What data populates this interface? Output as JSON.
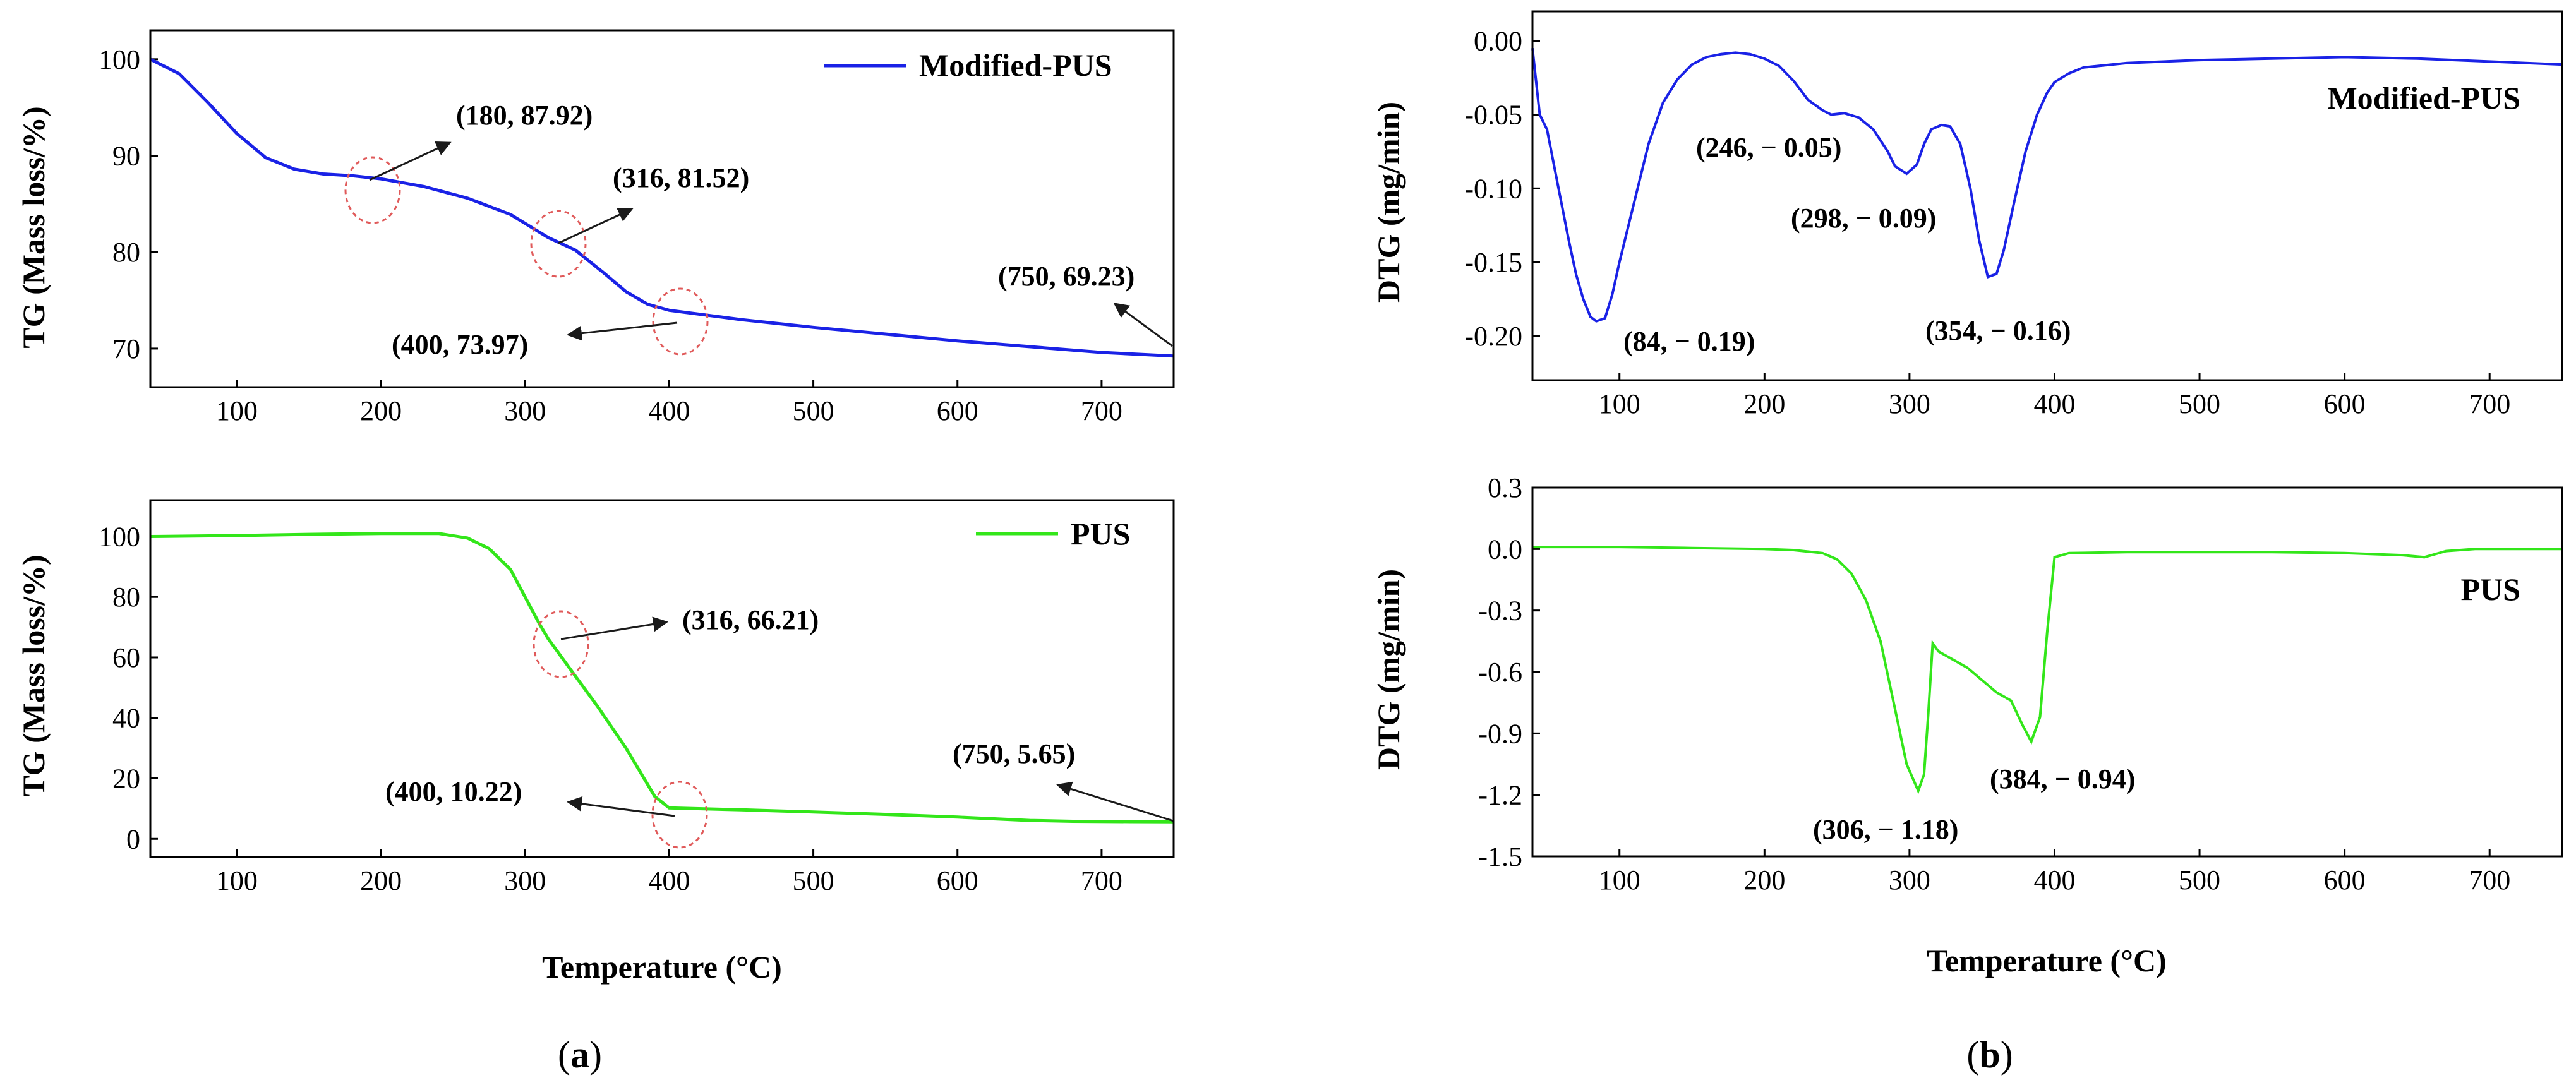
{
  "figure": {
    "panel_labels": [
      {
        "open": "(",
        "letter": "a",
        "close": ")"
      },
      {
        "open": "(",
        "letter": "b",
        "close": ")"
      }
    ],
    "x_axis_title": "Temperature (°C)",
    "x_ticks": [
      100,
      200,
      300,
      400,
      500,
      600,
      700
    ]
  },
  "colors": {
    "modified_pus": "#1a22e6",
    "pus": "#33e61a",
    "circle": "#e05a5a",
    "frame": "#000000"
  },
  "chart_data": [
    {
      "id": "tg_modified",
      "type": "line",
      "xlabel": "Temperature (°C)",
      "ylabel": "TG (Mass loss/%)",
      "xlim": [
        40,
        750
      ],
      "ylim": [
        66,
        103
      ],
      "yticks": [
        70,
        80,
        90,
        100
      ],
      "legend": "Modified-PUS",
      "legend_position": "top-right",
      "series": [
        {
          "name": "Modified-PUS",
          "x": [
            40,
            60,
            80,
            100,
            120,
            140,
            160,
            180,
            200,
            230,
            260,
            290,
            316,
            335,
            355,
            370,
            385,
            400,
            450,
            500,
            550,
            600,
            650,
            700,
            750
          ],
          "y": [
            100,
            98.5,
            95.5,
            92.3,
            89.8,
            88.6,
            88.1,
            87.92,
            87.6,
            86.8,
            85.6,
            83.9,
            81.52,
            80.2,
            77.8,
            75.9,
            74.6,
            73.97,
            73.0,
            72.2,
            71.5,
            70.8,
            70.2,
            69.6,
            69.23
          ]
        }
      ],
      "annotations": [
        {
          "label": "(180, 87.92)",
          "x": 180,
          "y": 87.92
        },
        {
          "label": "(316, 81.52)",
          "x": 316,
          "y": 81.52
        },
        {
          "label": "(400, 73.97)",
          "x": 400,
          "y": 73.97
        },
        {
          "label": "(750, 69.23)",
          "x": 750,
          "y": 69.23
        }
      ]
    },
    {
      "id": "tg_pus",
      "type": "line",
      "xlabel": "Temperature (°C)",
      "ylabel": "TG (Mass loss/%)",
      "xlim": [
        40,
        750
      ],
      "ylim": [
        -6,
        112
      ],
      "yticks": [
        0,
        20,
        40,
        60,
        80,
        100
      ],
      "legend": "PUS",
      "legend_position": "top-right",
      "series": [
        {
          "name": "PUS",
          "x": [
            40,
            100,
            150,
            200,
            240,
            260,
            275,
            290,
            300,
            310,
            316,
            330,
            350,
            370,
            390,
            400,
            450,
            500,
            550,
            600,
            650,
            680,
            720,
            750
          ],
          "y": [
            100,
            100.3,
            100.7,
            101,
            101,
            99.5,
            96,
            89,
            80,
            71,
            66.21,
            57,
            44,
            30,
            14,
            10.22,
            9.6,
            8.9,
            8.1,
            7.2,
            6.1,
            5.8,
            5.7,
            5.65
          ]
        }
      ],
      "annotations": [
        {
          "label": "(316, 66.21)",
          "x": 316,
          "y": 66.21
        },
        {
          "label": "(400, 10.22)",
          "x": 400,
          "y": 10.22
        },
        {
          "label": "(750, 5.65)",
          "x": 750,
          "y": 5.65
        }
      ]
    },
    {
      "id": "dtg_modified",
      "type": "line",
      "xlabel": "Temperature (°C)",
      "ylabel": "DTG (mg/min)",
      "xlim": [
        40,
        750
      ],
      "ylim": [
        -0.23,
        0.02
      ],
      "yticks": [
        0.0,
        -0.05,
        -0.1,
        -0.15,
        -0.2
      ],
      "ytick_labels": [
        "0.00",
        "-0.05",
        "-0.10",
        "-0.15",
        "-0.20"
      ],
      "legend": "Modified-PUS",
      "legend_position": "top-right",
      "series": [
        {
          "name": "Modified-PUS",
          "x": [
            40,
            45,
            50,
            55,
            60,
            65,
            70,
            75,
            80,
            84,
            90,
            95,
            100,
            110,
            120,
            130,
            140,
            150,
            160,
            170,
            180,
            190,
            200,
            210,
            220,
            230,
            240,
            246,
            255,
            265,
            275,
            285,
            290,
            298,
            305,
            310,
            315,
            322,
            328,
            335,
            342,
            348,
            354,
            360,
            365,
            372,
            380,
            388,
            395,
            400,
            410,
            420,
            450,
            500,
            550,
            600,
            650,
            700,
            750
          ],
          "y": [
            -0.005,
            -0.05,
            -0.06,
            -0.085,
            -0.11,
            -0.135,
            -0.158,
            -0.175,
            -0.187,
            -0.19,
            -0.188,
            -0.172,
            -0.15,
            -0.11,
            -0.07,
            -0.042,
            -0.026,
            -0.016,
            -0.011,
            -0.009,
            -0.008,
            -0.009,
            -0.012,
            -0.017,
            -0.027,
            -0.04,
            -0.047,
            -0.05,
            -0.049,
            -0.052,
            -0.06,
            -0.075,
            -0.085,
            -0.09,
            -0.084,
            -0.07,
            -0.06,
            -0.057,
            -0.058,
            -0.07,
            -0.1,
            -0.135,
            -0.16,
            -0.158,
            -0.142,
            -0.11,
            -0.075,
            -0.05,
            -0.035,
            -0.028,
            -0.022,
            -0.018,
            -0.015,
            -0.013,
            -0.012,
            -0.011,
            -0.012,
            -0.014,
            -0.016
          ]
        }
      ],
      "annotations": [
        {
          "label": "(84, − 0.19)",
          "x": 84,
          "y": -0.19
        },
        {
          "label": "(246, − 0.05)",
          "x": 246,
          "y": -0.05
        },
        {
          "label": "(298, − 0.09)",
          "x": 298,
          "y": -0.09
        },
        {
          "label": "(354, − 0.16)",
          "x": 354,
          "y": -0.16
        }
      ]
    },
    {
      "id": "dtg_pus",
      "type": "line",
      "xlabel": "Temperature (°C)",
      "ylabel": "DTG (mg/min)",
      "xlim": [
        40,
        750
      ],
      "ylim": [
        -1.5,
        0.3
      ],
      "yticks": [
        0.3,
        0.0,
        -0.3,
        -0.6,
        -0.9,
        -1.2,
        -1.5
      ],
      "ytick_labels": [
        "0.3",
        "0.0",
        "-0.3",
        "-0.6",
        "-0.9",
        "-1.2",
        "-1.5"
      ],
      "legend": "PUS",
      "legend_position": "right",
      "series": [
        {
          "name": "PUS",
          "x": [
            40,
            100,
            150,
            200,
            220,
            240,
            250,
            260,
            270,
            280,
            290,
            298,
            306,
            310,
            313,
            316,
            320,
            330,
            340,
            350,
            360,
            370,
            378,
            384,
            390,
            395,
            400,
            410,
            450,
            500,
            550,
            600,
            640,
            655,
            670,
            690,
            720,
            750
          ],
          "y": [
            0.01,
            0.01,
            0.005,
            0,
            -0.005,
            -0.02,
            -0.05,
            -0.12,
            -0.25,
            -0.45,
            -0.78,
            -1.05,
            -1.18,
            -1.1,
            -0.8,
            -0.46,
            -0.5,
            -0.54,
            -0.58,
            -0.64,
            -0.7,
            -0.74,
            -0.86,
            -0.94,
            -0.82,
            -0.4,
            -0.04,
            -0.02,
            -0.015,
            -0.015,
            -0.015,
            -0.02,
            -0.03,
            -0.04,
            -0.01,
            0.0,
            0.0,
            0.0
          ]
        }
      ],
      "annotations": [
        {
          "label": "(306, − 1.18)",
          "x": 306,
          "y": -1.18
        },
        {
          "label": "(384, − 0.94)",
          "x": 384,
          "y": -0.94
        }
      ]
    }
  ]
}
